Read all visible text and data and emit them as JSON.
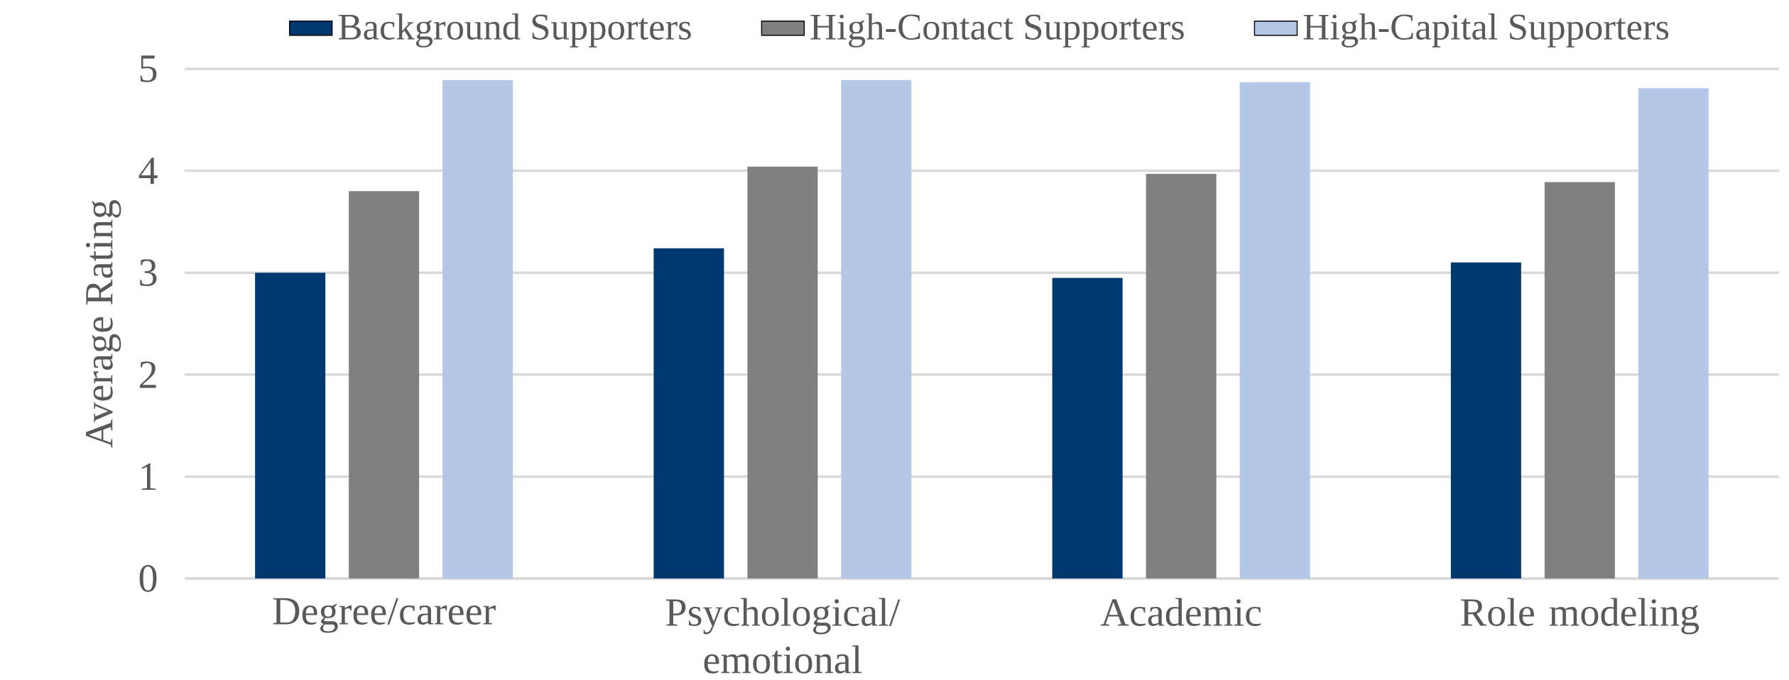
{
  "chart_data": {
    "type": "bar",
    "ylabel": "Average Rating",
    "categories": [
      "Degree/career",
      "Psychological/ emotional",
      "Academic",
      "Role modeling"
    ],
    "series": [
      {
        "name": "Background Supporters",
        "color": "#003870",
        "values": [
          3.0,
          3.24,
          2.95,
          3.1
        ]
      },
      {
        "name": "High-Contact Supporters",
        "color": "#808080",
        "values": [
          3.8,
          4.04,
          3.97,
          3.89
        ]
      },
      {
        "name": "High-Capital Supporters",
        "color": "#b4c7e7",
        "values": [
          4.89,
          4.89,
          4.87,
          4.81
        ]
      }
    ],
    "ylim": [
      0,
      5
    ],
    "yticks": [
      0,
      1,
      2,
      3,
      4,
      5
    ],
    "grid": "y",
    "legend": "top"
  }
}
